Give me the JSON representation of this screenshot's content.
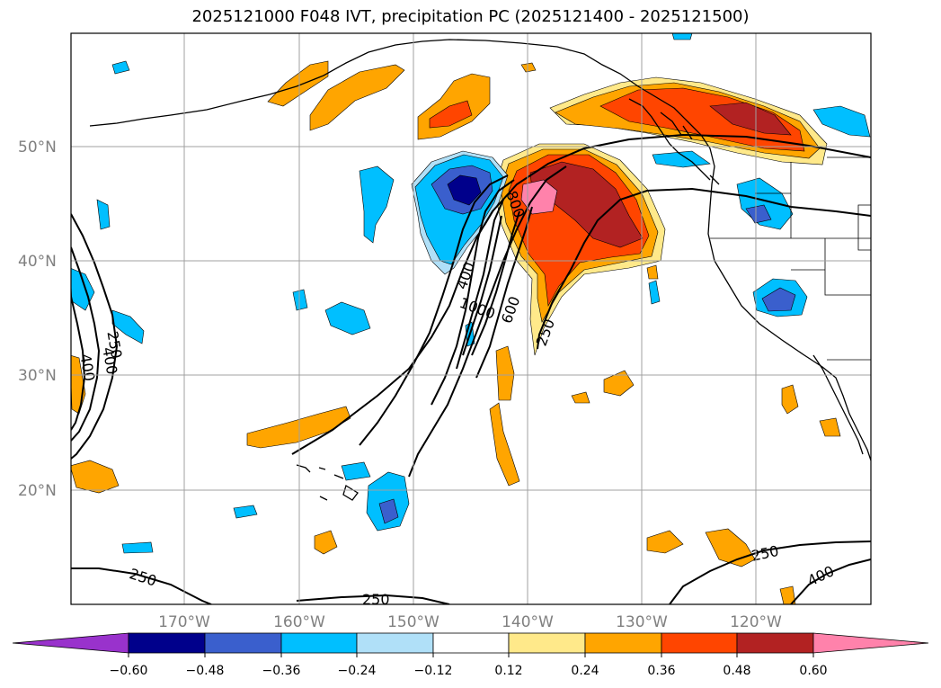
{
  "title": "2025121000 F048 IVT, precipitation PC (2025121400 - 2025121500)",
  "lat_labels": [
    "50°N",
    "40°N",
    "30°N",
    "20°N"
  ],
  "lon_labels": [
    "170°W",
    "160°W",
    "150°W",
    "140°W",
    "130°W",
    "120°W"
  ],
  "colorbar": {
    "ticks": [
      "−0.60",
      "−0.48",
      "−0.36",
      "−0.24",
      "−0.12",
      "0.12",
      "0.24",
      "0.36",
      "0.48",
      "0.60"
    ],
    "colors": [
      "#9932cc",
      "#00008b",
      "#3a5fcd",
      "#00bfff",
      "#b0e0f8",
      "#ffffff",
      "#ffe98a",
      "#ffa500",
      "#ff4500",
      "#b22222",
      "#ff82ab"
    ]
  },
  "contour_labels": [
    {
      "text": "250"
    },
    {
      "text": "400"
    },
    {
      "text": "400"
    },
    {
      "text": "400"
    },
    {
      "text": "1000"
    },
    {
      "text": "600"
    },
    {
      "text": "800"
    },
    {
      "text": "250"
    },
    {
      "text": "250"
    },
    {
      "text": "250"
    },
    {
      "text": "250"
    },
    {
      "text": "400"
    }
  ]
}
